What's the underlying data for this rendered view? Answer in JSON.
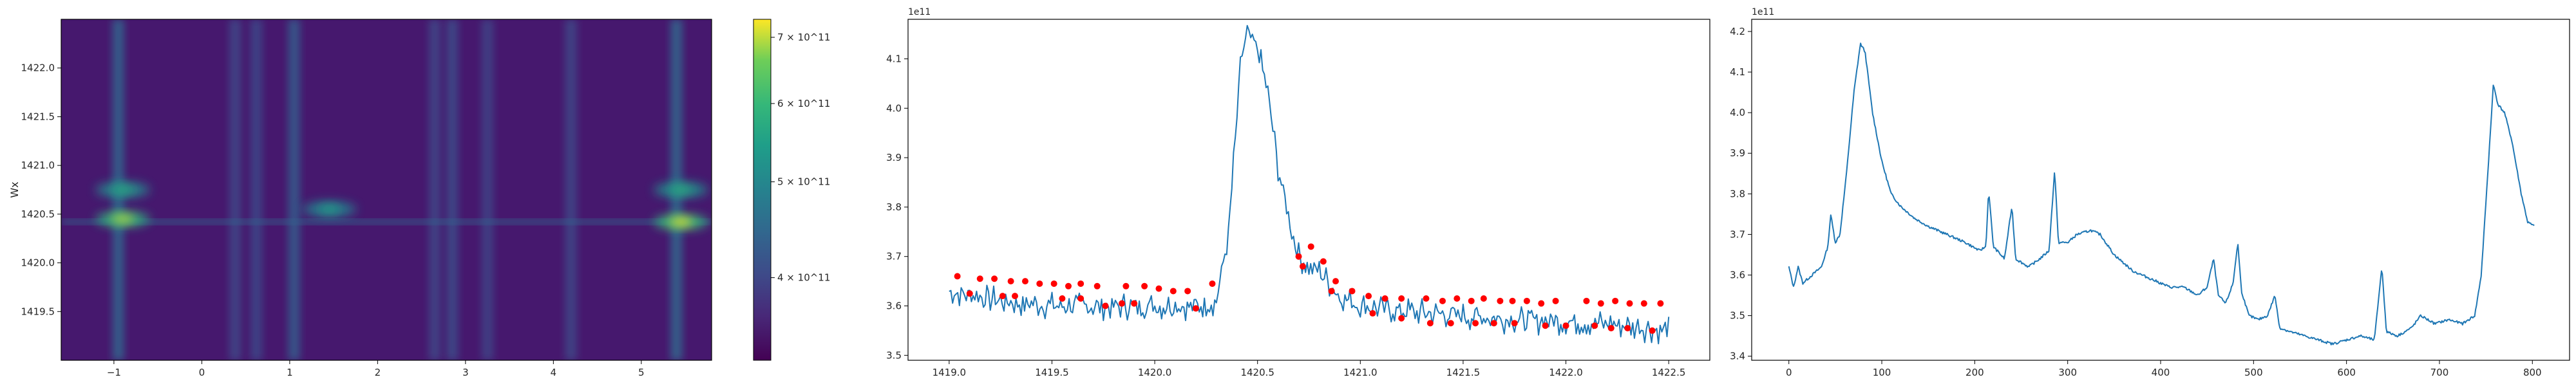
{
  "chart_data": [
    {
      "type": "heatmap",
      "ylabel": "Wx",
      "xlim": [
        -1.6,
        5.8
      ],
      "ylim": [
        1419.0,
        1422.5
      ],
      "xticks": [
        -1,
        0,
        1,
        2,
        3,
        4,
        5
      ],
      "xtick_labels": [
        "−1",
        "0",
        "1",
        "2",
        "3",
        "4",
        "5"
      ],
      "yticks": [
        1419.5,
        1420.0,
        1420.5,
        1421.0,
        1421.5,
        1422.0
      ],
      "ytick_labels": [
        "1419.5",
        "1420.0",
        "1420.5",
        "1421.0",
        "1421.5",
        "1422.0"
      ],
      "colormap": "viridis",
      "color_scale": "log",
      "clim": [
        330000000000.0,
        730000000000.0
      ],
      "colorbar_ticks": [
        400000000000.0,
        500000000000.0,
        600000000000.0,
        700000000000.0
      ],
      "colorbar_labels": [
        "4 × 10^11",
        "5 × 10^11",
        "6 × 10^11",
        "7 × 10^11"
      ],
      "vertical_bands": [
        {
          "x": -0.95,
          "strength": 0.55
        },
        {
          "x": 0.38,
          "strength": 0.18
        },
        {
          "x": 0.62,
          "strength": 0.2
        },
        {
          "x": 1.05,
          "strength": 0.45
        },
        {
          "x": 2.65,
          "strength": 0.18
        },
        {
          "x": 2.85,
          "strength": 0.25
        },
        {
          "x": 3.25,
          "strength": 0.15
        },
        {
          "x": 4.2,
          "strength": 0.18
        },
        {
          "x": 5.4,
          "strength": 0.6
        }
      ],
      "hot_spots": [
        {
          "x": -0.9,
          "y": 1420.45,
          "level": 0.95
        },
        {
          "x": -0.9,
          "y": 1420.75,
          "level": 0.7
        },
        {
          "x": 1.45,
          "y": 1420.55,
          "level": 0.65
        },
        {
          "x": 5.45,
          "y": 1420.42,
          "level": 1.0
        },
        {
          "x": 5.45,
          "y": 1420.75,
          "level": 0.72
        }
      ]
    },
    {
      "type": "line",
      "offset_text": "1e11",
      "xlim": [
        1418.8,
        1422.7
      ],
      "ylim": [
        3.49,
        4.18
      ],
      "xticks": [
        1419.0,
        1419.5,
        1420.0,
        1420.5,
        1421.0,
        1421.5,
        1422.0,
        1422.5
      ],
      "xtick_labels": [
        "1419.0",
        "1419.5",
        "1420.0",
        "1420.5",
        "1421.0",
        "1421.5",
        "1422.0",
        "1422.5"
      ],
      "yticks": [
        3.5,
        3.6,
        3.7,
        3.8,
        3.9,
        4.0,
        4.1
      ],
      "ytick_labels": [
        "3.5",
        "3.6",
        "3.7",
        "3.8",
        "3.9",
        "4.0",
        "4.1"
      ],
      "line_color": "#1f77b4",
      "marker_color": "#ff0000",
      "key_points": [
        [
          1419.0,
          3.63
        ],
        [
          1419.25,
          3.61
        ],
        [
          1419.5,
          3.6
        ],
        [
          1419.75,
          3.6
        ],
        [
          1420.0,
          3.6
        ],
        [
          1420.2,
          3.6
        ],
        [
          1420.3,
          3.61
        ],
        [
          1420.36,
          3.75
        ],
        [
          1420.42,
          4.1
        ],
        [
          1420.45,
          4.15
        ],
        [
          1420.5,
          4.12
        ],
        [
          1420.55,
          4.03
        ],
        [
          1420.6,
          3.88
        ],
        [
          1420.65,
          3.78
        ],
        [
          1420.7,
          3.7
        ],
        [
          1420.75,
          3.68
        ],
        [
          1420.8,
          3.67
        ],
        [
          1420.9,
          3.62
        ],
        [
          1421.0,
          3.6
        ],
        [
          1421.2,
          3.59
        ],
        [
          1421.5,
          3.58
        ],
        [
          1421.8,
          3.57
        ],
        [
          1422.0,
          3.57
        ],
        [
          1422.3,
          3.56
        ],
        [
          1422.5,
          3.55
        ]
      ],
      "peaks": [
        [
          1419.04,
          3.66
        ],
        [
          1419.15,
          3.655
        ],
        [
          1419.22,
          3.655
        ],
        [
          1419.3,
          3.65
        ],
        [
          1419.37,
          3.65
        ],
        [
          1419.44,
          3.645
        ],
        [
          1419.51,
          3.645
        ],
        [
          1419.58,
          3.64
        ],
        [
          1419.64,
          3.645
        ],
        [
          1419.72,
          3.64
        ],
        [
          1419.86,
          3.64
        ],
        [
          1419.95,
          3.64
        ],
        [
          1420.02,
          3.635
        ],
        [
          1420.09,
          3.63
        ],
        [
          1420.16,
          3.63
        ],
        [
          1420.28,
          3.645
        ],
        [
          1420.7,
          3.7
        ],
        [
          1420.76,
          3.72
        ],
        [
          1420.82,
          3.69
        ],
        [
          1420.88,
          3.65
        ],
        [
          1420.96,
          3.63
        ],
        [
          1421.04,
          3.62
        ],
        [
          1421.12,
          3.615
        ],
        [
          1421.2,
          3.615
        ],
        [
          1421.32,
          3.615
        ],
        [
          1421.4,
          3.61
        ],
        [
          1421.47,
          3.615
        ],
        [
          1421.54,
          3.61
        ],
        [
          1421.6,
          3.615
        ],
        [
          1421.68,
          3.61
        ],
        [
          1421.74,
          3.61
        ],
        [
          1421.81,
          3.61
        ],
        [
          1421.88,
          3.605
        ],
        [
          1421.95,
          3.61
        ],
        [
          1422.1,
          3.61
        ],
        [
          1422.17,
          3.605
        ],
        [
          1422.24,
          3.61
        ],
        [
          1422.31,
          3.605
        ],
        [
          1422.38,
          3.605
        ],
        [
          1422.46,
          3.605
        ],
        [
          1419.1,
          3.625
        ],
        [
          1419.26,
          3.62
        ],
        [
          1419.32,
          3.62
        ],
        [
          1419.55,
          3.615
        ],
        [
          1419.64,
          3.615
        ],
        [
          1419.76,
          3.6
        ],
        [
          1419.84,
          3.605
        ],
        [
          1419.9,
          3.605
        ],
        [
          1420.2,
          3.595
        ],
        [
          1420.72,
          3.68
        ],
        [
          1420.86,
          3.63
        ],
        [
          1421.06,
          3.585
        ],
        [
          1421.2,
          3.575
        ],
        [
          1421.34,
          3.565
        ],
        [
          1421.44,
          3.565
        ],
        [
          1421.56,
          3.565
        ],
        [
          1421.65,
          3.565
        ],
        [
          1421.75,
          3.565
        ],
        [
          1421.9,
          3.56
        ],
        [
          1422.0,
          3.56
        ],
        [
          1422.14,
          3.56
        ],
        [
          1422.22,
          3.555
        ],
        [
          1422.3,
          3.555
        ],
        [
          1422.42,
          3.55
        ]
      ]
    },
    {
      "type": "line",
      "offset_text": "1e11",
      "xlim": [
        -40,
        840
      ],
      "ylim": [
        3.39,
        4.23
      ],
      "xticks": [
        0,
        100,
        200,
        300,
        400,
        500,
        600,
        700,
        800
      ],
      "xtick_labels": [
        "0",
        "100",
        "200",
        "300",
        "400",
        "500",
        "600",
        "700",
        "800"
      ],
      "yticks": [
        3.4,
        3.5,
        3.6,
        3.7,
        3.8,
        3.9,
        4.0,
        4.1,
        4.2
      ],
      "ytick_labels": [
        "3.4",
        "3.5",
        "3.6",
        "3.7",
        "3.8",
        "3.9",
        "4.0",
        "4.1",
        "4.2"
      ],
      "line_color": "#1f77b4",
      "key_points": [
        [
          0,
          3.62
        ],
        [
          5,
          3.57
        ],
        [
          10,
          3.62
        ],
        [
          15,
          3.58
        ],
        [
          25,
          3.6
        ],
        [
          35,
          3.62
        ],
        [
          42,
          3.67
        ],
        [
          45,
          3.75
        ],
        [
          50,
          3.68
        ],
        [
          55,
          3.7
        ],
        [
          62,
          3.85
        ],
        [
          70,
          4.05
        ],
        [
          77,
          4.17
        ],
        [
          82,
          4.15
        ],
        [
          90,
          4.0
        ],
        [
          100,
          3.88
        ],
        [
          110,
          3.8
        ],
        [
          120,
          3.77
        ],
        [
          135,
          3.74
        ],
        [
          150,
          3.72
        ],
        [
          170,
          3.7
        ],
        [
          190,
          3.68
        ],
        [
          205,
          3.66
        ],
        [
          212,
          3.67
        ],
        [
          215,
          3.81
        ],
        [
          220,
          3.67
        ],
        [
          232,
          3.64
        ],
        [
          240,
          3.77
        ],
        [
          244,
          3.64
        ],
        [
          258,
          3.62
        ],
        [
          270,
          3.64
        ],
        [
          280,
          3.66
        ],
        [
          286,
          3.86
        ],
        [
          290,
          3.68
        ],
        [
          300,
          3.68
        ],
        [
          310,
          3.7
        ],
        [
          325,
          3.71
        ],
        [
          335,
          3.7
        ],
        [
          350,
          3.65
        ],
        [
          370,
          3.61
        ],
        [
          390,
          3.59
        ],
        [
          410,
          3.57
        ],
        [
          425,
          3.57
        ],
        [
          440,
          3.55
        ],
        [
          450,
          3.57
        ],
        [
          457,
          3.64
        ],
        [
          462,
          3.55
        ],
        [
          470,
          3.53
        ],
        [
          478,
          3.58
        ],
        [
          483,
          3.68
        ],
        [
          487,
          3.56
        ],
        [
          495,
          3.5
        ],
        [
          505,
          3.49
        ],
        [
          515,
          3.5
        ],
        [
          523,
          3.55
        ],
        [
          528,
          3.47
        ],
        [
          540,
          3.46
        ],
        [
          555,
          3.45
        ],
        [
          570,
          3.44
        ],
        [
          585,
          3.43
        ],
        [
          600,
          3.44
        ],
        [
          615,
          3.45
        ],
        [
          630,
          3.44
        ],
        [
          638,
          3.62
        ],
        [
          643,
          3.46
        ],
        [
          655,
          3.45
        ],
        [
          670,
          3.47
        ],
        [
          680,
          3.5
        ],
        [
          695,
          3.48
        ],
        [
          710,
          3.49
        ],
        [
          725,
          3.48
        ],
        [
          738,
          3.5
        ],
        [
          745,
          3.6
        ],
        [
          752,
          3.85
        ],
        [
          758,
          4.07
        ],
        [
          763,
          4.02
        ],
        [
          770,
          4.0
        ],
        [
          778,
          3.93
        ],
        [
          788,
          3.8
        ],
        [
          795,
          3.73
        ],
        [
          802,
          3.72
        ]
      ]
    }
  ]
}
